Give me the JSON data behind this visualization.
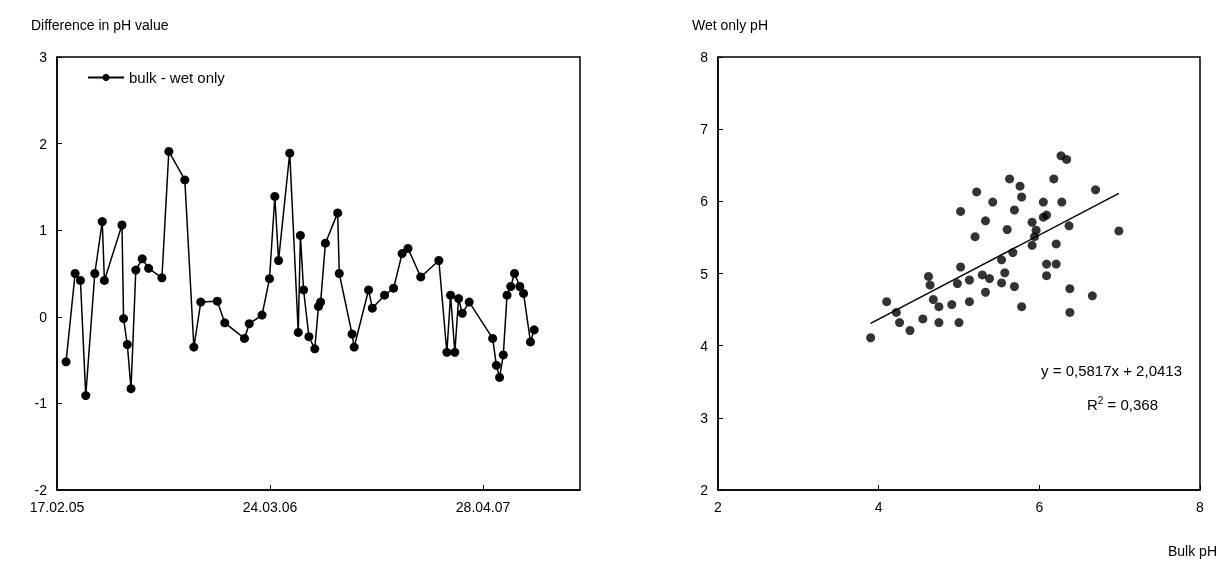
{
  "chart_data": [
    {
      "type": "line",
      "ylabel": "Difference in pH value",
      "marker": "circle",
      "legend": "top left",
      "grid": false,
      "x": [
        "2005-03-06",
        "2005-03-23",
        "2005-04-02",
        "2005-04-12",
        "2005-04-29",
        "2005-05-13",
        "2005-05-17",
        "2005-06-19",
        "2005-06-22",
        "2005-06-29",
        "2005-07-06",
        "2005-07-15",
        "2005-07-27",
        "2005-08-08",
        "2005-09-02",
        "2005-09-15",
        "2005-10-15",
        "2005-11-01",
        "2005-11-14",
        "2005-12-15",
        "2005-12-29",
        "2006-02-04",
        "2006-02-13",
        "2006-03-09",
        "2006-03-23",
        "2006-04-02",
        "2006-04-09",
        "2006-04-30",
        "2006-05-16",
        "2006-05-20",
        "2006-05-26",
        "2006-06-05",
        "2006-06-16",
        "2006-06-23",
        "2006-06-27",
        "2006-07-06",
        "2006-07-29",
        "2006-08-01",
        "2006-08-25",
        "2006-08-29",
        "2006-09-25",
        "2006-10-02",
        "2006-10-25",
        "2006-11-11",
        "2006-11-27",
        "2006-12-08",
        "2007-01-01",
        "2007-02-04",
        "2007-02-19",
        "2007-02-26",
        "2007-03-06",
        "2007-03-13",
        "2007-03-20",
        "2007-04-02",
        "2007-05-16",
        "2007-05-23",
        "2007-05-29",
        "2007-06-05",
        "2007-06-12",
        "2007-06-19",
        "2007-06-26",
        "2007-07-06",
        "2007-07-13",
        "2007-07-26",
        "2007-08-02"
      ],
      "series": [
        {
          "name": "bulk - wet only",
          "color": "#000000",
          "values": [
            -0.52,
            0.5,
            0.42,
            -0.91,
            0.5,
            1.1,
            0.42,
            1.06,
            -0.02,
            -0.32,
            -0.83,
            0.54,
            0.67,
            0.56,
            0.45,
            1.91,
            1.58,
            -0.35,
            0.17,
            0.18,
            -0.07,
            -0.25,
            -0.08,
            0.02,
            0.44,
            1.39,
            0.65,
            1.89,
            -0.18,
            0.94,
            0.31,
            -0.23,
            -0.37,
            0.12,
            0.17,
            0.85,
            1.2,
            0.5,
            -0.2,
            -0.35,
            0.31,
            0.1,
            0.25,
            0.33,
            0.73,
            0.79,
            0.46,
            0.65,
            -0.41,
            0.25,
            -0.41,
            0.21,
            0.04,
            0.17,
            -0.25,
            -0.56,
            -0.7,
            -0.44,
            0.25,
            0.35,
            0.5,
            0.35,
            0.27,
            -0.29,
            -0.15
          ]
        }
      ],
      "xlim": [
        "2005-02-17",
        "2007-10-27"
      ],
      "xticks": [
        {
          "value": "2005-02-17",
          "label": "17.02.05"
        },
        {
          "value": "2006-03-24",
          "label": "24.03.06"
        },
        {
          "value": "2007-04-28",
          "label": "28.04.07"
        }
      ],
      "ylim": [
        -2,
        3
      ],
      "yticks": [
        -2,
        -1,
        0,
        1,
        2,
        3
      ]
    },
    {
      "type": "scatter",
      "ylabel": "Wet only pH",
      "xlabel": "Bulk pH",
      "marker": "circle",
      "grid": false,
      "annotations": [
        "y = 0,5817x + 2,0413",
        "R$^{2}$ = 0,368"
      ],
      "series": [
        {
          "color": "#000000",
          "x": [
            3.9,
            4.1,
            4.22,
            4.26,
            4.39,
            4.55,
            4.6,
            4.62,
            4.64,
            4.68,
            4.75,
            4.75,
            4.91,
            4.98,
            5.0,
            5.02,
            5.02,
            5.13,
            5.13,
            5.2,
            5.22,
            5.29,
            5.33,
            5.33,
            5.38,
            5.42,
            5.53,
            5.57,
            5.53,
            5.6,
            5.63,
            5.67,
            5.69,
            5.69,
            5.76,
            5.78,
            5.78,
            5.88,
            5.91,
            5.96,
            5.94,
            5.91,
            6.05,
            6.05,
            6.09,
            6.09,
            6.09,
            6.18,
            6.21,
            6.21,
            6.24,
            6.28,
            6.27,
            6.34,
            6.37,
            6.38,
            6.38,
            6.66,
            6.7,
            6.99
          ],
          "values": [
            4.11,
            4.61,
            4.46,
            4.32,
            4.21,
            4.37,
            null,
            4.96,
            4.84,
            4.64,
            4.54,
            4.32,
            4.57,
            4.86,
            4.32,
            5.09,
            5.86,
            4.91,
            4.61,
            5.51,
            6.13,
            4.98,
            5.73,
            4.74,
            4.93,
            5.99,
            5.19,
            5.01,
            4.87,
            5.61,
            6.31,
            5.29,
            5.88,
            4.82,
            6.21,
            6.06,
            4.54,
            null,
            5.71,
            5.6,
            5.51,
            5.39,
            5.99,
            5.78,
            5.81,
            5.13,
            4.97,
            6.31,
            5.41,
            5.13,
            null,
            5.99,
            6.63,
            6.58,
            5.66,
            4.79,
            4.46,
            4.69,
            6.16,
            5.59
          ]
        },
        {
          "type": "line",
          "color": "#000000",
          "marker": "none",
          "x": [
            3.9,
            6.99
          ],
          "values": [
            4.31,
            6.11
          ]
        }
      ],
      "xlim": [
        2,
        8
      ],
      "xticks": [
        2,
        4,
        6,
        8
      ],
      "ylim": [
        2,
        8
      ],
      "yticks": [
        2,
        3,
        4,
        5,
        6,
        7,
        8
      ]
    }
  ]
}
